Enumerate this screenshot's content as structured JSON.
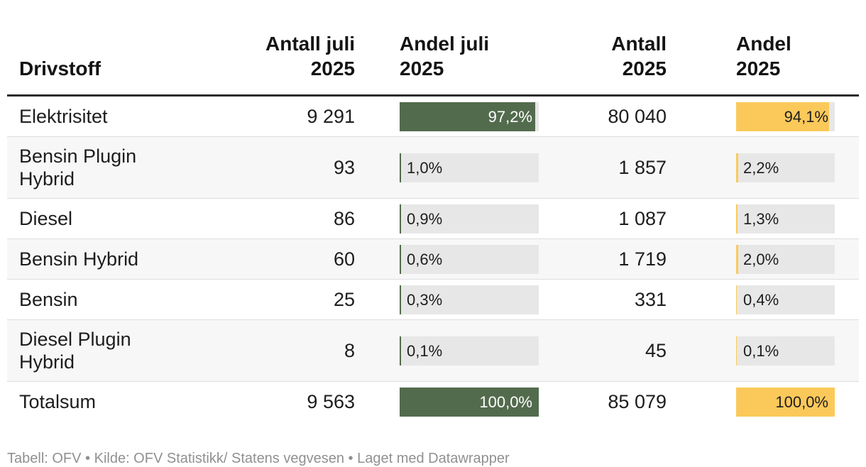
{
  "header": {
    "columns": [
      {
        "key": "label",
        "line1": "Drivstoff",
        "line2": ""
      },
      {
        "key": "antall_juli",
        "line1": "Antall juli",
        "line2": "2025"
      },
      {
        "key": "andel_juli",
        "line1": "Andel juli",
        "line2": "2025"
      },
      {
        "key": "antall_2025",
        "line1": "Antall",
        "line2": "2025"
      },
      {
        "key": "andel_2025",
        "line1": "Andel",
        "line2": "2025"
      }
    ]
  },
  "table": {
    "rows": [
      {
        "label": "Elektrisitet",
        "antall_juli": "9 291",
        "andel_juli_pct": 97.2,
        "andel_juli_label": "97,2%",
        "antall_2025": "80 040",
        "andel_2025_pct": 94.1,
        "andel_2025_label": "94,1%"
      },
      {
        "label": "Bensin Plugin Hybrid",
        "antall_juli": "93",
        "andel_juli_pct": 1.0,
        "andel_juli_label": "1,0%",
        "antall_2025": "1 857",
        "andel_2025_pct": 2.2,
        "andel_2025_label": "2,2%"
      },
      {
        "label": "Diesel",
        "antall_juli": "86",
        "andel_juli_pct": 0.9,
        "andel_juli_label": "0,9%",
        "antall_2025": "1 087",
        "andel_2025_pct": 1.3,
        "andel_2025_label": "1,3%"
      },
      {
        "label": "Bensin Hybrid",
        "antall_juli": "60",
        "andel_juli_pct": 0.6,
        "andel_juli_label": "0,6%",
        "antall_2025": "1 719",
        "andel_2025_pct": 2.0,
        "andel_2025_label": "2,0%"
      },
      {
        "label": "Bensin",
        "antall_juli": "25",
        "andel_juli_pct": 0.3,
        "andel_juli_label": "0,3%",
        "antall_2025": "331",
        "andel_2025_pct": 0.4,
        "andel_2025_label": "0,4%"
      },
      {
        "label": "Diesel Plugin Hybrid",
        "antall_juli": "8",
        "andel_juli_pct": 0.1,
        "andel_juli_label": "0,1%",
        "antall_2025": "45",
        "andel_2025_pct": 0.1,
        "andel_2025_label": "0,1%"
      },
      {
        "label": "Totalsum",
        "antall_juli": "9 563",
        "andel_juli_pct": 100.0,
        "andel_juli_label": "100,0%",
        "antall_2025": "85 079",
        "andel_2025_pct": 100.0,
        "andel_2025_label": "100,0%"
      }
    ]
  },
  "colors": {
    "bar_juli": "#536b4d",
    "bar_2025": "#fbc95a",
    "bar_track": "#e7e7e7",
    "alt_row": "#f7f7f7"
  },
  "footer": {
    "text": "Tabell: OFV • Kilde: OFV Statistikk/ Statens vegvesen • Laget med Datawrapper"
  },
  "chart_data": {
    "type": "table",
    "title": "",
    "columns": [
      "Drivstoff",
      "Antall juli 2025",
      "Andel juli 2025",
      "Antall 2025",
      "Andel 2025"
    ],
    "rows": [
      [
        "Elektrisitet",
        9291,
        97.2,
        80040,
        94.1
      ],
      [
        "Bensin Plugin Hybrid",
        93,
        1.0,
        1857,
        2.2
      ],
      [
        "Diesel",
        86,
        0.9,
        1087,
        1.3
      ],
      [
        "Bensin Hybrid",
        60,
        0.6,
        1719,
        2.0
      ],
      [
        "Bensin",
        25,
        0.3,
        331,
        0.4
      ],
      [
        "Diesel Plugin Hybrid",
        8,
        0.1,
        45,
        0.1
      ],
      [
        "Totalsum",
        9563,
        100.0,
        85079,
        100.0
      ]
    ],
    "bar_columns": [
      {
        "column": "Andel juli 2025",
        "color": "#536b4d",
        "range": [
          0,
          100
        ]
      },
      {
        "column": "Andel 2025",
        "color": "#fbc95a",
        "range": [
          0,
          100
        ]
      }
    ],
    "units": {
      "Andel juli 2025": "%",
      "Andel 2025": "%"
    },
    "notes": "share labels use comma decimal separator"
  }
}
